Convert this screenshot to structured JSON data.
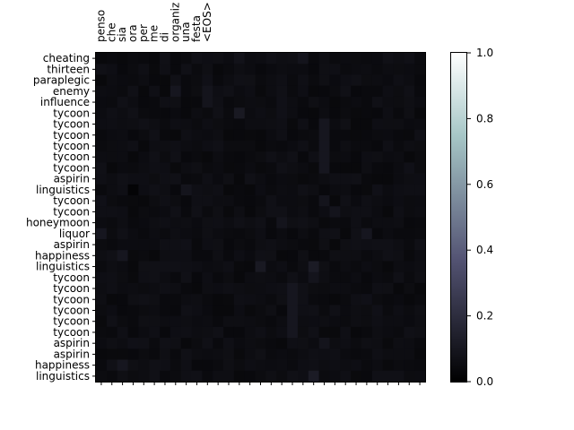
{
  "chart_data": {
    "type": "heatmap",
    "title": "",
    "xlabel": "",
    "ylabel": "",
    "x_labels": [
      "penso",
      "che",
      "sia",
      "ora",
      "per",
      "me",
      "di",
      "organiz",
      "una",
      "festa",
      "<EOS>",
      "",
      "",
      "",
      "",
      "",
      "",
      "",
      "",
      "",
      "",
      "",
      "",
      "",
      "",
      "",
      "",
      "",
      "",
      "",
      ""
    ],
    "y_labels": [
      "cheating",
      "thirteen",
      "paraplegic",
      "enemy",
      "influence",
      "tycoon",
      "tycoon",
      "tycoon",
      "tycoon",
      "tycoon",
      "tycoon",
      "aspirin",
      "linguistics",
      "tycoon",
      "tycoon",
      "honeymoon",
      "liquor",
      "aspirin",
      "happiness",
      "linguistics",
      "tycoon",
      "tycoon",
      "tycoon",
      "tycoon",
      "tycoon",
      "tycoon",
      "aspirin",
      "aspirin",
      "happiness",
      "linguistics"
    ],
    "colorbar": {
      "colormap": "bone",
      "range": [
        0.0,
        1.0
      ],
      "ticks": [
        "0.0",
        "0.2",
        "0.4",
        "0.6",
        "0.8",
        "1.0"
      ]
    },
    "base_value": 0.05,
    "highlights": [
      {
        "row": 0,
        "col": 19,
        "value": 0.09
      },
      {
        "row": 0,
        "col": 13,
        "value": 0.08
      },
      {
        "row": 3,
        "col": 7,
        "value": 0.1
      },
      {
        "row": 3,
        "col": 10,
        "value": 0.09
      },
      {
        "row": 4,
        "col": 10,
        "value": 0.09
      },
      {
        "row": 5,
        "col": 13,
        "value": 0.11
      },
      {
        "row": 6,
        "col": 21,
        "value": 0.1
      },
      {
        "row": 7,
        "col": 21,
        "value": 0.1
      },
      {
        "row": 8,
        "col": 21,
        "value": 0.1
      },
      {
        "row": 9,
        "col": 21,
        "value": 0.1
      },
      {
        "row": 10,
        "col": 21,
        "value": 0.1
      },
      {
        "row": 12,
        "col": 3,
        "value": 0.02
      },
      {
        "row": 12,
        "col": 8,
        "value": 0.09
      },
      {
        "row": 13,
        "col": 21,
        "value": 0.09
      },
      {
        "row": 14,
        "col": 22,
        "value": 0.09
      },
      {
        "row": 15,
        "col": 17,
        "value": 0.09
      },
      {
        "row": 16,
        "col": 0,
        "value": 0.1
      },
      {
        "row": 16,
        "col": 25,
        "value": 0.1
      },
      {
        "row": 18,
        "col": 2,
        "value": 0.1
      },
      {
        "row": 19,
        "col": 15,
        "value": 0.11
      },
      {
        "row": 19,
        "col": 20,
        "value": 0.12
      },
      {
        "row": 20,
        "col": 20,
        "value": 0.09
      },
      {
        "row": 21,
        "col": 18,
        "value": 0.1
      },
      {
        "row": 22,
        "col": 18,
        "value": 0.1
      },
      {
        "row": 23,
        "col": 18,
        "value": 0.1
      },
      {
        "row": 24,
        "col": 18,
        "value": 0.1
      },
      {
        "row": 25,
        "col": 18,
        "value": 0.1
      },
      {
        "row": 26,
        "col": 21,
        "value": 0.09
      },
      {
        "row": 28,
        "col": 2,
        "value": 0.1
      },
      {
        "row": 29,
        "col": 20,
        "value": 0.12
      }
    ]
  }
}
